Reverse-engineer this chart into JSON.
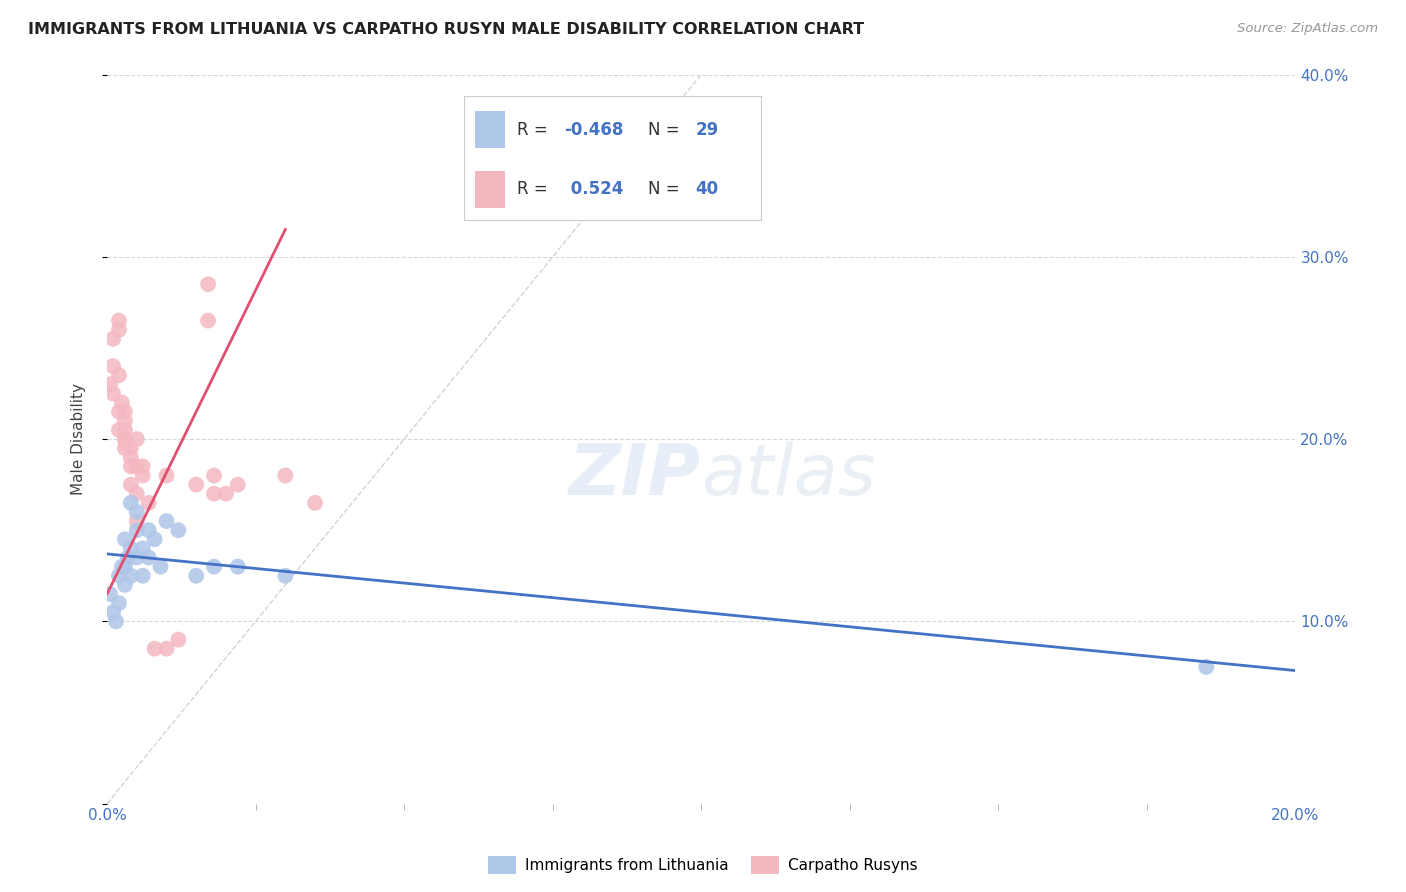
{
  "title": "IMMIGRANTS FROM LITHUANIA VS CARPATHO RUSYN MALE DISABILITY CORRELATION CHART",
  "source": "Source: ZipAtlas.com",
  "ylabel": "Male Disability",
  "legend_label1": "Immigrants from Lithuania",
  "legend_label2": "Carpatho Rusyns",
  "R1": -0.468,
  "N1": 29,
  "R2": 0.524,
  "N2": 40,
  "color1": "#aec6e8",
  "color2": "#f4b8c1",
  "line_color1": "#4472c4",
  "line_color2": "#e05070",
  "xmin": 0.0,
  "xmax": 0.2,
  "ymin": 0.0,
  "ymax": 0.4,
  "xtick_positions": [
    0.0,
    0.2
  ],
  "xtick_minor_positions": [
    0.025,
    0.05,
    0.075,
    0.1,
    0.125,
    0.15,
    0.175
  ],
  "yticks_right": [
    0.0,
    0.1,
    0.2,
    0.3,
    0.4
  ],
  "background_color": "#ffffff",
  "grid_color": "#d8d8d8",
  "blue_scatter": [
    [
      0.0005,
      0.115
    ],
    [
      0.001,
      0.105
    ],
    [
      0.0015,
      0.1
    ],
    [
      0.002,
      0.125
    ],
    [
      0.002,
      0.11
    ],
    [
      0.0025,
      0.13
    ],
    [
      0.003,
      0.12
    ],
    [
      0.003,
      0.145
    ],
    [
      0.003,
      0.13
    ],
    [
      0.0035,
      0.135
    ],
    [
      0.004,
      0.14
    ],
    [
      0.004,
      0.165
    ],
    [
      0.004,
      0.125
    ],
    [
      0.005,
      0.15
    ],
    [
      0.005,
      0.135
    ],
    [
      0.005,
      0.16
    ],
    [
      0.006,
      0.14
    ],
    [
      0.006,
      0.125
    ],
    [
      0.007,
      0.15
    ],
    [
      0.007,
      0.135
    ],
    [
      0.008,
      0.145
    ],
    [
      0.009,
      0.13
    ],
    [
      0.01,
      0.155
    ],
    [
      0.012,
      0.15
    ],
    [
      0.015,
      0.125
    ],
    [
      0.018,
      0.13
    ],
    [
      0.022,
      0.13
    ],
    [
      0.03,
      0.125
    ],
    [
      0.185,
      0.075
    ]
  ],
  "pink_scatter": [
    [
      0.0005,
      0.23
    ],
    [
      0.001,
      0.225
    ],
    [
      0.001,
      0.255
    ],
    [
      0.001,
      0.24
    ],
    [
      0.002,
      0.265
    ],
    [
      0.002,
      0.26
    ],
    [
      0.002,
      0.235
    ],
    [
      0.002,
      0.215
    ],
    [
      0.002,
      0.205
    ],
    [
      0.0025,
      0.22
    ],
    [
      0.003,
      0.21
    ],
    [
      0.003,
      0.2
    ],
    [
      0.003,
      0.195
    ],
    [
      0.003,
      0.215
    ],
    [
      0.003,
      0.205
    ],
    [
      0.003,
      0.2
    ],
    [
      0.004,
      0.195
    ],
    [
      0.004,
      0.19
    ],
    [
      0.004,
      0.185
    ],
    [
      0.004,
      0.175
    ],
    [
      0.005,
      0.2
    ],
    [
      0.005,
      0.185
    ],
    [
      0.005,
      0.17
    ],
    [
      0.005,
      0.155
    ],
    [
      0.006,
      0.185
    ],
    [
      0.006,
      0.18
    ],
    [
      0.007,
      0.165
    ],
    [
      0.008,
      0.085
    ],
    [
      0.01,
      0.18
    ],
    [
      0.01,
      0.085
    ],
    [
      0.012,
      0.09
    ],
    [
      0.015,
      0.175
    ],
    [
      0.017,
      0.285
    ],
    [
      0.017,
      0.265
    ],
    [
      0.018,
      0.17
    ],
    [
      0.018,
      0.18
    ],
    [
      0.02,
      0.17
    ],
    [
      0.022,
      0.175
    ],
    [
      0.03,
      0.18
    ],
    [
      0.035,
      0.165
    ]
  ],
  "blue_trend_x": [
    0.0,
    0.2
  ],
  "blue_trend_y": [
    0.137,
    0.073
  ],
  "pink_trend_x": [
    0.0,
    0.03
  ],
  "pink_trend_y": [
    0.115,
    0.315
  ]
}
